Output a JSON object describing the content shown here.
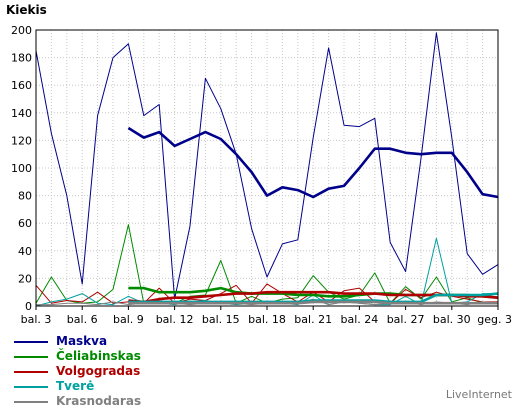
{
  "colors": {
    "grid": "#c8c8c8",
    "axis": "#000000",
    "background": "#ffffff"
  },
  "watermark": "LiveInternet",
  "chart_data": {
    "type": "line",
    "ylabel": "Kiekis",
    "ylim": [
      0,
      200
    ],
    "yticks": [
      0,
      20,
      40,
      60,
      80,
      100,
      120,
      140,
      160,
      180,
      200
    ],
    "x": [
      "bal. 3",
      "bal. 4",
      "bal. 5",
      "bal. 6",
      "bal. 7",
      "bal. 8",
      "bal. 9",
      "bal. 10",
      "bal. 11",
      "bal. 12",
      "bal. 13",
      "bal. 14",
      "bal. 15",
      "bal. 16",
      "bal. 17",
      "bal. 18",
      "bal. 19",
      "bal. 20",
      "bal. 21",
      "bal. 22",
      "bal. 23",
      "bal. 24",
      "bal. 25",
      "bal. 26",
      "bal. 27",
      "bal. 28",
      "bal. 29",
      "bal. 30",
      "geg. 1",
      "geg. 2",
      "geg. 3"
    ],
    "xtick_labels": [
      "bal. 3",
      "bal. 6",
      "bal. 9",
      "bal. 12",
      "bal. 15",
      "bal. 18",
      "bal. 21",
      "bal. 24",
      "bal. 27",
      "bal. 30",
      "geg. 3"
    ],
    "grid": true,
    "legend_position": "bottom-left",
    "series": [
      {
        "name": "Maskva",
        "color": "#00008b",
        "width": 1,
        "values": [
          185,
          125,
          80,
          16,
          138,
          180,
          190,
          138,
          146,
          5,
          58,
          165,
          143,
          110,
          56,
          21,
          45,
          48,
          122,
          187,
          131,
          130,
          136,
          46,
          25,
          107,
          198,
          122,
          38,
          23,
          30
        ]
      },
      {
        "name": "Maskva",
        "color": "#00008b",
        "width": 2.6,
        "legend": false,
        "values": [
          null,
          null,
          null,
          null,
          null,
          null,
          129,
          122,
          126,
          116,
          121,
          126,
          121,
          110,
          97,
          80,
          86,
          84,
          79,
          85,
          87,
          100,
          114,
          114,
          111,
          110,
          111,
          111,
          97,
          81,
          79
        ]
      },
      {
        "name": "Čeliabinskas",
        "color": "#008a00",
        "width": 1,
        "values": [
          2,
          21,
          4,
          2,
          3,
          12,
          59,
          2,
          3,
          2,
          7,
          8,
          33,
          2,
          7,
          2,
          5,
          6,
          22,
          10,
          5,
          8,
          24,
          2,
          14,
          5,
          21,
          3,
          6,
          2,
          2
        ]
      },
      {
        "name": "Čeliabinskas",
        "color": "#008a00",
        "width": 2.6,
        "legend": false,
        "values": [
          null,
          null,
          null,
          null,
          null,
          null,
          13,
          13,
          10,
          10,
          10,
          11,
          13,
          10,
          9,
          9,
          9,
          8,
          8,
          7,
          7,
          8,
          9,
          9,
          8,
          8,
          8,
          8,
          8,
          7,
          6
        ]
      },
      {
        "name": "Volgogradas",
        "color": "#b00000",
        "width": 1,
        "values": [
          15,
          2,
          4,
          3,
          10,
          2,
          3,
          2,
          13,
          2,
          5,
          4,
          9,
          15,
          2,
          16,
          9,
          3,
          10,
          3,
          11,
          13,
          3,
          2,
          12,
          6,
          10,
          7,
          5,
          3,
          3
        ]
      },
      {
        "name": "Volgogradas",
        "color": "#b00000",
        "width": 2.6,
        "legend": false,
        "values": [
          null,
          null,
          null,
          null,
          null,
          null,
          4,
          3,
          5,
          6,
          6,
          7,
          8,
          9,
          9,
          10,
          10,
          10,
          10,
          10,
          9,
          9,
          9,
          8,
          8,
          8,
          8,
          8,
          7,
          7,
          6
        ]
      },
      {
        "name": "Tverė",
        "color": "#00a0a0",
        "width": 1,
        "values": [
          0,
          3,
          5,
          9,
          2,
          1,
          7,
          2,
          2,
          1,
          3,
          4,
          2,
          1,
          2,
          3,
          2,
          1,
          8,
          1,
          3,
          2,
          1,
          1,
          7,
          1,
          49,
          2,
          3,
          9,
          9
        ]
      },
      {
        "name": "Tverė",
        "color": "#00a0a0",
        "width": 2.6,
        "legend": false,
        "values": [
          null,
          null,
          null,
          null,
          null,
          null,
          3,
          3,
          3,
          3,
          3,
          3,
          3,
          3,
          3,
          3,
          3,
          3,
          4,
          4,
          4,
          4,
          4,
          3,
          3,
          3,
          8,
          8,
          8,
          8,
          9
        ]
      },
      {
        "name": "Krasnodaras",
        "color": "#808080",
        "width": 1,
        "values": [
          1,
          1,
          2,
          2,
          1,
          3,
          1,
          2,
          4,
          2,
          1,
          2,
          3,
          2,
          1,
          2,
          3,
          2,
          5,
          1,
          3,
          2,
          1,
          2,
          3,
          1,
          3,
          2,
          1,
          3,
          2
        ]
      },
      {
        "name": "Krasnodaras",
        "color": "#808080",
        "width": 2.6,
        "legend": false,
        "values": [
          null,
          null,
          null,
          null,
          null,
          null,
          2,
          2,
          2,
          2,
          2,
          2,
          2,
          2,
          2,
          2,
          2,
          2,
          3,
          3,
          3,
          3,
          3,
          2,
          2,
          2,
          2,
          2,
          2,
          2,
          2
        ]
      }
    ]
  }
}
